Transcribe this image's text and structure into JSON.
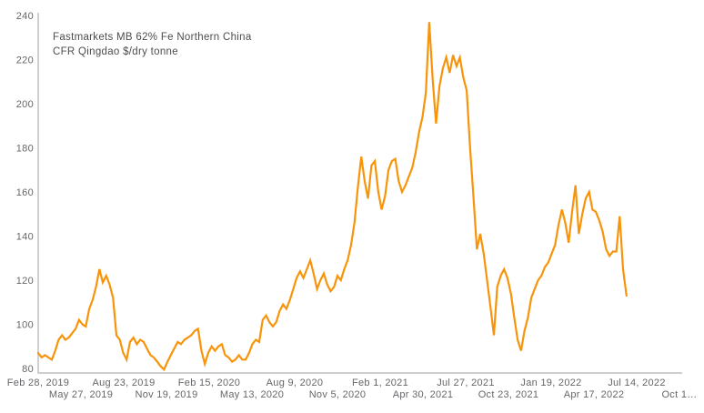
{
  "title": {
    "line1": "Fastmarkets MB 62% Fe Northern China",
    "line2": "CFR Qingdao $/dry tonne"
  },
  "colors": {
    "line": "#F8940A",
    "axis": "#BDBDBD",
    "tick_text": "#66666A",
    "title_text": "#4D4D50",
    "background": "#FFFFFF"
  },
  "chart_data": {
    "type": "line",
    "title": "Fastmarkets MB 62% Fe Northern China CFR Qingdao $/dry tonne",
    "xlabel": "",
    "ylabel": "$/dry tonne",
    "ylim": [
      80,
      240
    ],
    "y_tick_step": 20,
    "y_tick_labels": [
      80,
      100,
      120,
      140,
      160,
      180,
      200,
      220,
      240
    ],
    "grid": false,
    "legend_position": "none",
    "x_tick_labels": [
      "Feb 28, 2019",
      "May 27, 2019",
      "Aug 23, 2019",
      "Nov 19, 2019",
      "Feb 15, 2020",
      "May 13, 2020",
      "Aug 9, 2020",
      "Nov 5, 2020",
      "Feb 1, 2021",
      "Apr 30, 2021",
      "Jul 27, 2021",
      "Oct 23, 2021",
      "Jan 19, 2022",
      "Apr 17, 2022",
      "Jul 14, 2022",
      "Oct 1…"
    ],
    "x_tick_interval_days": 88,
    "x_tick_rows": 2,
    "series_start_label": "Feb 28, 2019",
    "series_point_interval_days": 7,
    "series": [
      {
        "name": "Fastmarkets MB 62% Fe Northern China CFR Qingdao $/dry tonne",
        "values": [
          87,
          85,
          86,
          85,
          84,
          88,
          93,
          95,
          93,
          94,
          96,
          98,
          102,
          100,
          99,
          107,
          111,
          117,
          125,
          119,
          122,
          118,
          112,
          95,
          93,
          87,
          84,
          92,
          94,
          91,
          93,
          92,
          89,
          86,
          85,
          83,
          81,
          79.5,
          83,
          86,
          89,
          92,
          91,
          93,
          94,
          95,
          97,
          98,
          88,
          82,
          87,
          90,
          88,
          90,
          91,
          86,
          85,
          83,
          84,
          86,
          84,
          84,
          87,
          91,
          93,
          92,
          102,
          104,
          101,
          99,
          101,
          106,
          109,
          107,
          111,
          116,
          121,
          124,
          121,
          125,
          129,
          123,
          116,
          120,
          123,
          118,
          115,
          117,
          122,
          120,
          125,
          129,
          136,
          146,
          162,
          176,
          165,
          157,
          172,
          174,
          160,
          152,
          158,
          170,
          174,
          175,
          165,
          160,
          163,
          167,
          171,
          178,
          187,
          194,
          205,
          237,
          211,
          191,
          208,
          216,
          221,
          214,
          222,
          217,
          221,
          212,
          206,
          180,
          158,
          134,
          141,
          132,
          120,
          108,
          95,
          117,
          122,
          125,
          121,
          114,
          103,
          93,
          88,
          97,
          103,
          112,
          116,
          120,
          122,
          126,
          128,
          132,
          136,
          145,
          152,
          146,
          137,
          151,
          163,
          141,
          150,
          157,
          160,
          152,
          151,
          147,
          142,
          134,
          131,
          133,
          133,
          149,
          125,
          113
        ]
      }
    ]
  }
}
